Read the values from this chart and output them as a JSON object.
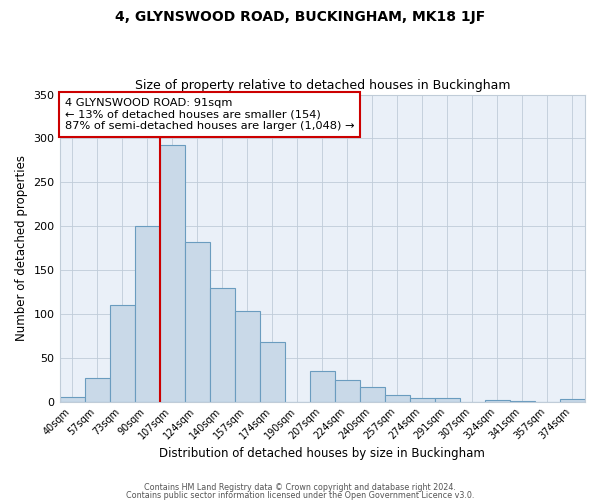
{
  "title1": "4, GLYNSWOOD ROAD, BUCKINGHAM, MK18 1JF",
  "title2": "Size of property relative to detached houses in Buckingham",
  "xlabel": "Distribution of detached houses by size in Buckingham",
  "ylabel": "Number of detached properties",
  "bar_labels": [
    "40sqm",
    "57sqm",
    "73sqm",
    "90sqm",
    "107sqm",
    "124sqm",
    "140sqm",
    "157sqm",
    "174sqm",
    "190sqm",
    "207sqm",
    "224sqm",
    "240sqm",
    "257sqm",
    "274sqm",
    "291sqm",
    "307sqm",
    "324sqm",
    "341sqm",
    "357sqm",
    "374sqm"
  ],
  "bar_values": [
    5,
    27,
    110,
    200,
    293,
    182,
    130,
    103,
    68,
    0,
    35,
    25,
    17,
    8,
    4,
    4,
    0,
    2,
    1,
    0,
    3
  ],
  "bar_color": "#c9d9e8",
  "bar_edge_color": "#6a9cbf",
  "vline_color": "#cc0000",
  "annotation_text": "4 GLYNSWOOD ROAD: 91sqm\n← 13% of detached houses are smaller (154)\n87% of semi-detached houses are larger (1,048) →",
  "annotation_box_color": "#ffffff",
  "annotation_box_edge": "#cc0000",
  "ylim": [
    0,
    350
  ],
  "yticks": [
    0,
    50,
    100,
    150,
    200,
    250,
    300,
    350
  ],
  "background_color": "#eaf0f8",
  "footer1": "Contains HM Land Registry data © Crown copyright and database right 2024.",
  "footer2": "Contains public sector information licensed under the Open Government Licence v3.0."
}
